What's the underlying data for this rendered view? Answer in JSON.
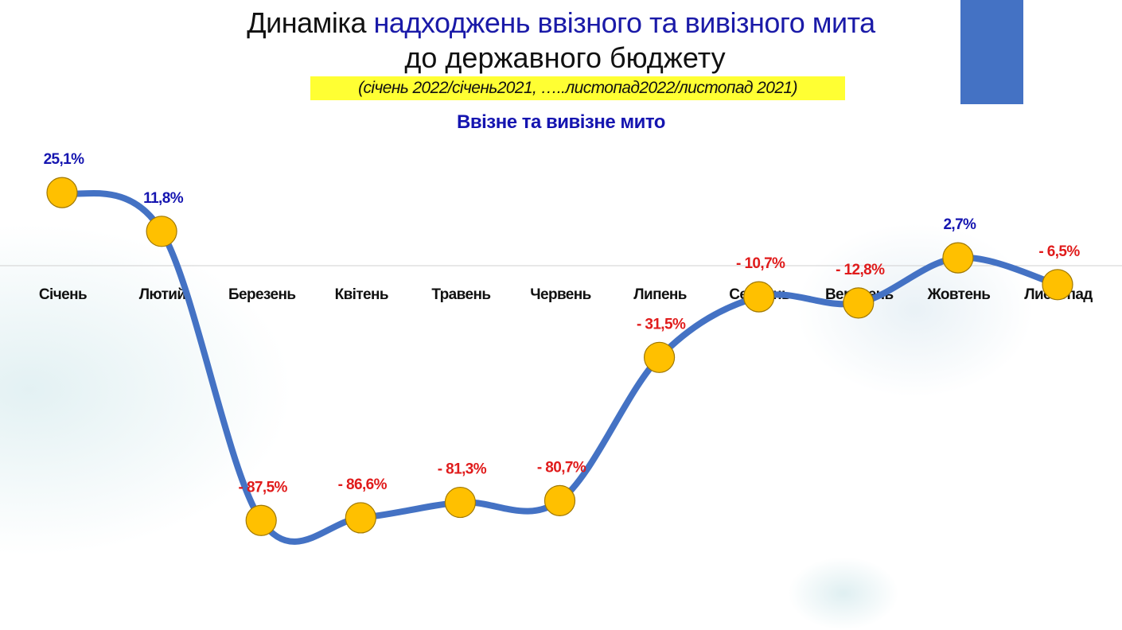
{
  "title": {
    "part1": "Динаміка",
    "part2": "надходжень ввізного та вивізного мита",
    "line2": "до державного бюджету"
  },
  "subtitle": "(січень 2022/січень2021, …..листопад2022/листопад 2021)",
  "colors": {
    "line": "#4472c4",
    "marker": "#ffc000",
    "positive_label": "#1515b0",
    "negative_label": "#e01b1b",
    "accent_bar": "#4472c4",
    "highlight": "#ffff33"
  },
  "chart_data": {
    "type": "line",
    "title": "Ввізне та вивізне мито",
    "categories": [
      "Січень",
      "Лютий",
      "Березень",
      "Квітень",
      "Травень",
      "Червень",
      "Липень",
      "Серпень",
      "Вересень",
      "Жовтень",
      "Листопад"
    ],
    "series": [
      {
        "values": [
          25.1,
          11.8,
          -87.5,
          -86.6,
          -81.3,
          -80.7,
          -31.5,
          -10.7,
          -12.8,
          2.7,
          -6.5
        ]
      }
    ],
    "data_labels": [
      "25,1%",
      "11,8%",
      "- 87,5%",
      "- 86,6%",
      "- 81,3%",
      "- 80,7%",
      "- 31,5%",
      "- 10,7%",
      "- 12,8%",
      "2,7%",
      "- 6,5%"
    ],
    "unit": "%",
    "smooth": true,
    "zero_line": true,
    "grid": false,
    "legend": "none"
  }
}
